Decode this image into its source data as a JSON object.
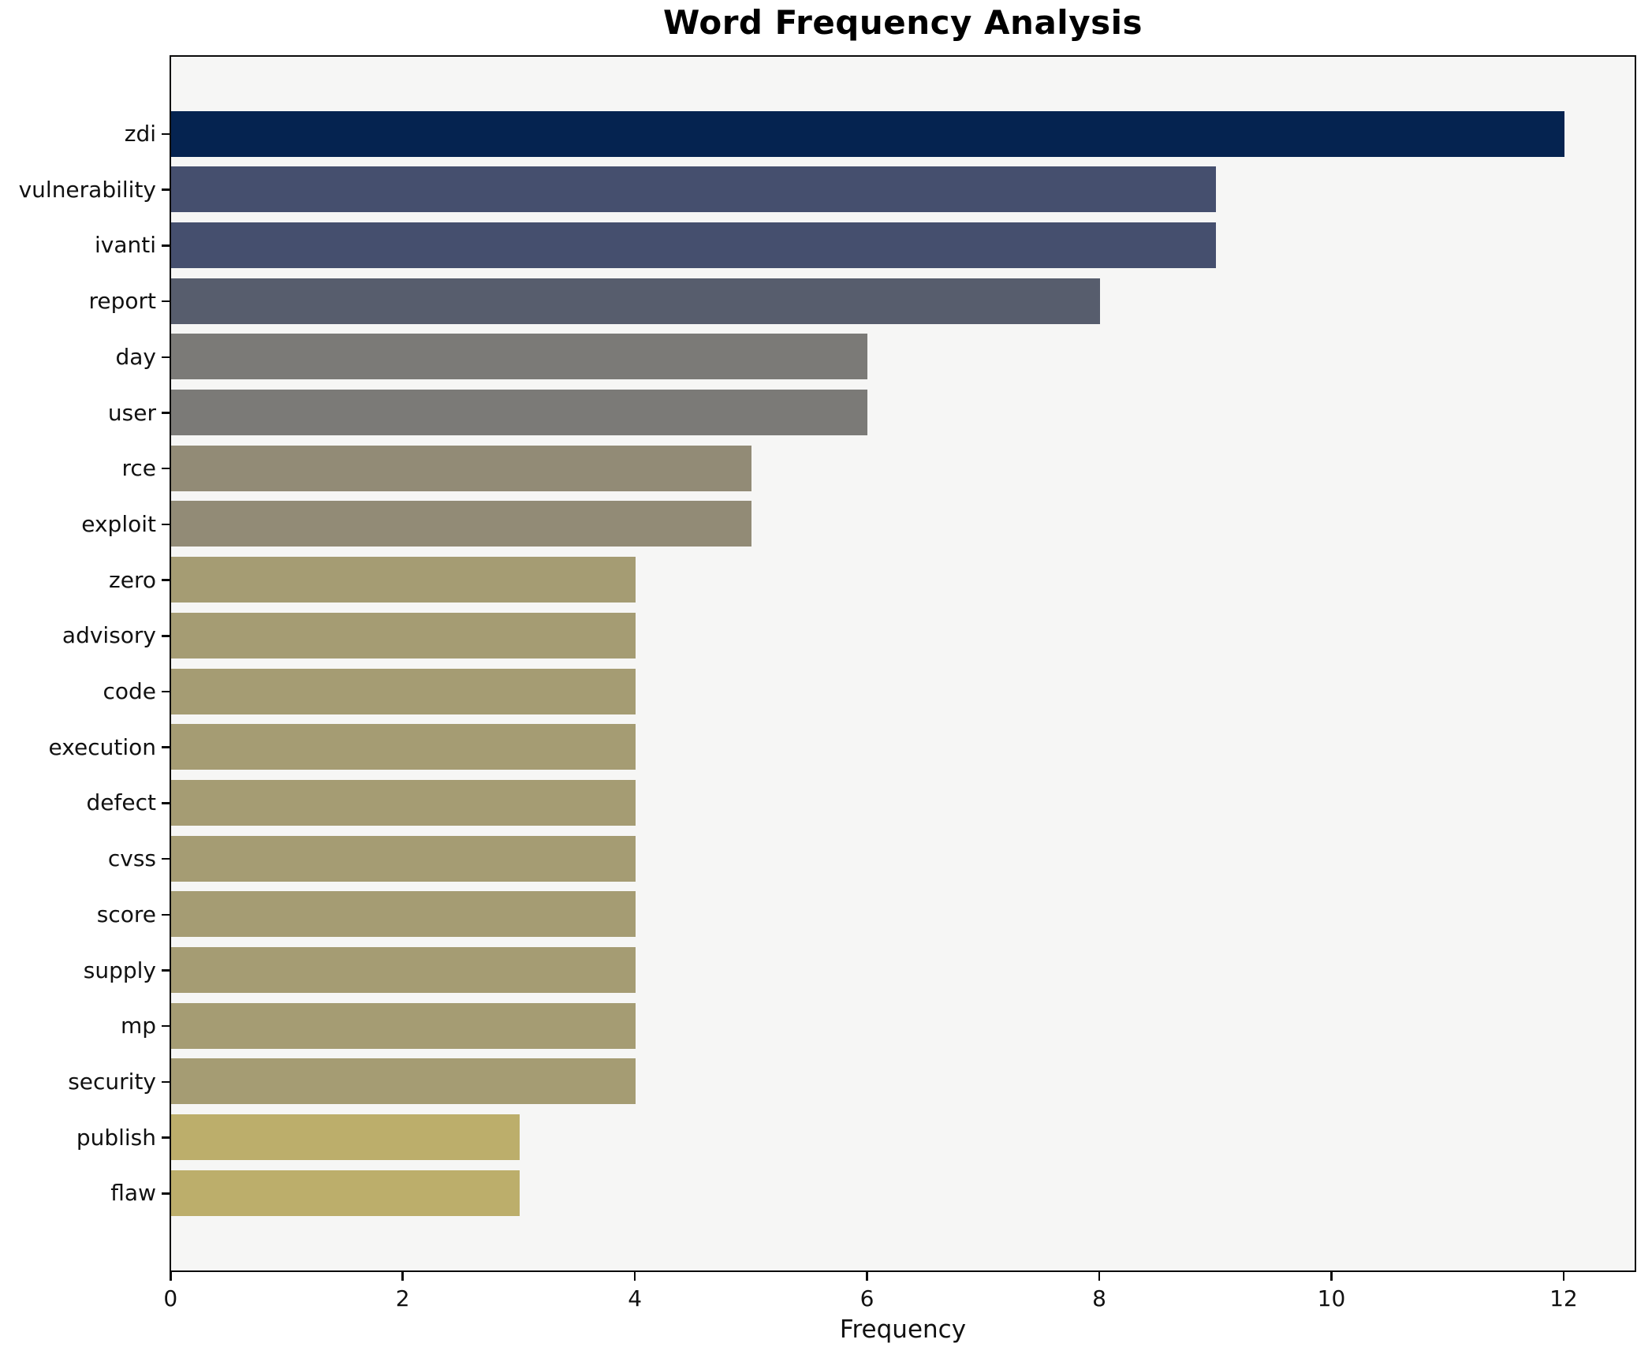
{
  "title": "Word Frequency Analysis",
  "chart_data": {
    "type": "bar",
    "orientation": "horizontal",
    "title": "Word Frequency Analysis",
    "xlabel": "Frequency",
    "ylabel": "",
    "categories": [
      "zdi",
      "vulnerability",
      "ivanti",
      "report",
      "day",
      "user",
      "rce",
      "exploit",
      "zero",
      "advisory",
      "code",
      "execution",
      "defect",
      "cvss",
      "score",
      "supply",
      "mp",
      "security",
      "publish",
      "flaw"
    ],
    "values": [
      12,
      9,
      9,
      8,
      6,
      6,
      5,
      5,
      4,
      4,
      4,
      4,
      4,
      4,
      4,
      4,
      4,
      4,
      3,
      3
    ],
    "bar_colors": [
      "#052350",
      "#454f6e",
      "#454f6e",
      "#575d6d",
      "#7b7a77",
      "#7b7a77",
      "#928b76",
      "#928b76",
      "#a59c73",
      "#a59c73",
      "#a59c73",
      "#a59c73",
      "#a59c73",
      "#a59c73",
      "#a59c73",
      "#a59c73",
      "#a59c73",
      "#a59c73",
      "#bcae6b",
      "#bcae6b"
    ],
    "x_ticks": [
      0,
      2,
      4,
      6,
      8,
      10,
      12
    ],
    "xlim": [
      0,
      12.6
    ],
    "grid": false,
    "legend": "none",
    "colormap": "cividis",
    "plot_background": "#f6f6f5",
    "figure_background": "#ffffff",
    "spine_color": "#0a0a0a",
    "text_color": "#111111"
  }
}
